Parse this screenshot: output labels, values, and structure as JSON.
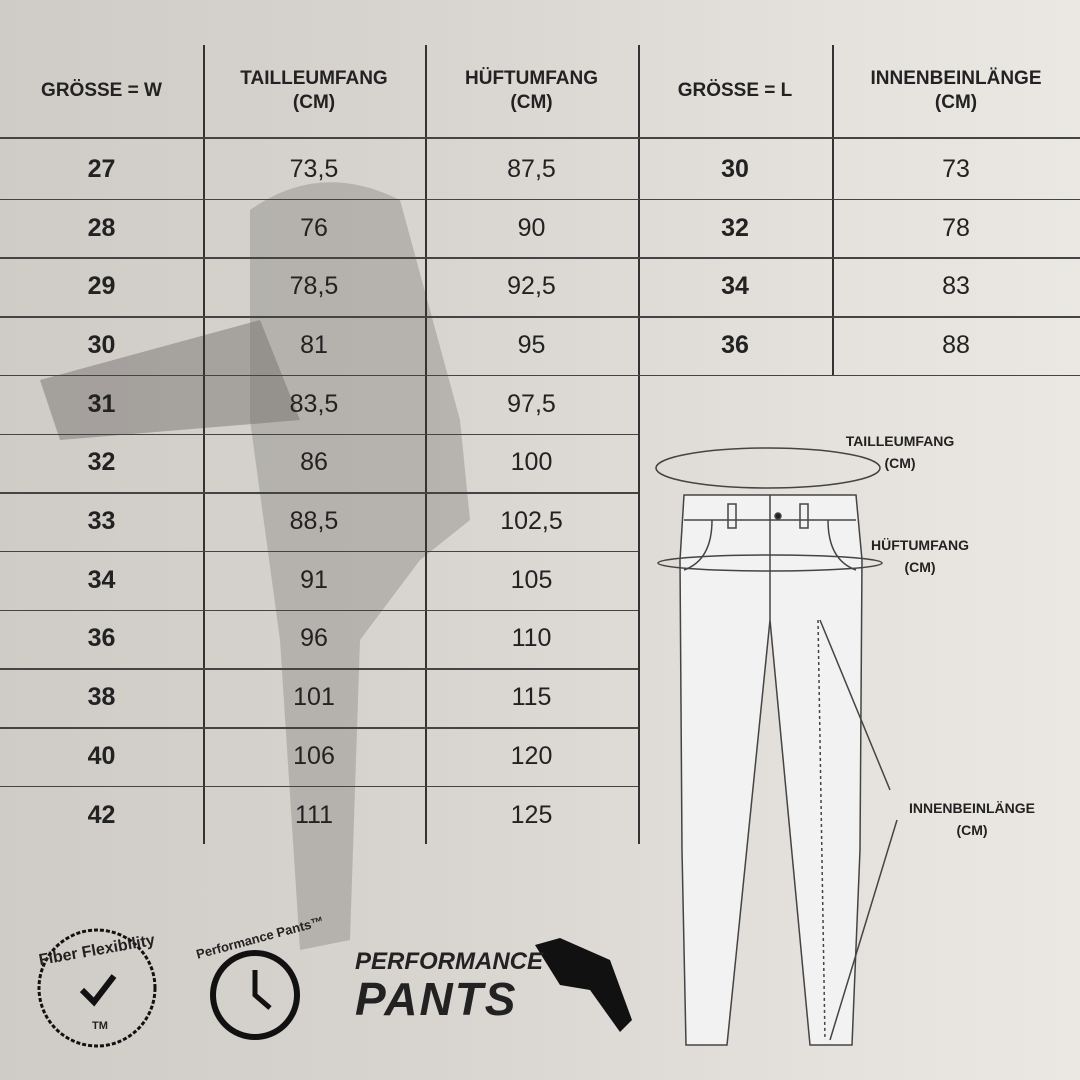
{
  "table_w": {
    "headers": [
      [
        "GRÖSSE = W"
      ],
      [
        "TAILLEUMFANG",
        "(CM)"
      ],
      [
        "HÜFTUMFANG",
        "(CM)"
      ]
    ],
    "rows": [
      [
        "27",
        "73,5",
        "87,5"
      ],
      [
        "28",
        "76",
        "90"
      ],
      [
        "29",
        "78,5",
        "92,5"
      ],
      [
        "30",
        "81",
        "95"
      ],
      [
        "31",
        "83,5",
        "97,5"
      ],
      [
        "32",
        "86",
        "100"
      ],
      [
        "33",
        "88,5",
        "102,5"
      ],
      [
        "34",
        "91",
        "105"
      ],
      [
        "36",
        "96",
        "110"
      ],
      [
        "38",
        "101",
        "115"
      ],
      [
        "40",
        "106",
        "120"
      ],
      [
        "42",
        "111",
        "125"
      ]
    ]
  },
  "table_l": {
    "headers": [
      [
        "GRÖSSE = L"
      ],
      [
        "INNENBEINLÄNGE",
        "(CM)"
      ]
    ],
    "rows": [
      [
        "30",
        "73"
      ],
      [
        "32",
        "78"
      ],
      [
        "34",
        "83"
      ],
      [
        "36",
        "88"
      ]
    ]
  },
  "diagram": {
    "waist": [
      "TAILLEUMFANG",
      "(CM)"
    ],
    "hip": [
      "HÜFTUMFANG",
      "(CM)"
    ],
    "inseam": [
      "INNENBEINLÄNGE",
      "(CM)"
    ]
  },
  "badges": {
    "fiber": "Fiber Flexibility",
    "fiber_tm": "TM",
    "performance_arc": "Performance Pants™",
    "brand_line1": "PERFORMANCE",
    "brand_line2": "PANTS"
  }
}
